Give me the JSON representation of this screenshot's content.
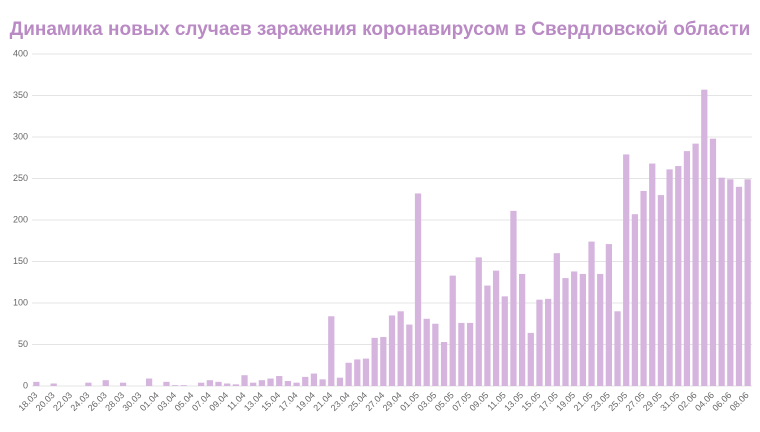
{
  "chart_data": {
    "type": "bar",
    "title": "Динамика новых случаев заражения коронавирусом в Свердловской области",
    "categories": [
      "18.03",
      null,
      "20.03",
      null,
      "22.03",
      null,
      "24.03",
      null,
      "26.03",
      null,
      "28.03",
      null,
      "30.03",
      null,
      "01.04",
      null,
      "03.04",
      null,
      "05.04",
      null,
      "07.04",
      null,
      "09.04",
      null,
      "11.04",
      null,
      "13.04",
      null,
      "15.04",
      null,
      "17.04",
      null,
      "19.04",
      null,
      "21.04",
      null,
      "23.04",
      null,
      "25.04",
      null,
      "27.04",
      null,
      "29.04",
      null,
      "01.05",
      null,
      "03.05",
      null,
      "05.05",
      null,
      "07.05",
      null,
      "09.05",
      null,
      "11.05",
      null,
      "13.05",
      null,
      "15.05",
      null,
      "17.05",
      null,
      "19.05",
      null,
      "21.05",
      null,
      "23.05",
      null,
      "25.05",
      null,
      "27.05",
      null,
      "29.05",
      null,
      "31.05",
      null,
      "02.06",
      null,
      "04.06",
      null,
      "06.06",
      null,
      "08.06"
    ],
    "values": [
      5,
      0,
      3,
      0,
      0,
      0,
      4,
      0,
      7,
      0,
      4,
      0,
      0,
      9,
      0,
      5,
      1,
      1,
      0,
      4,
      7,
      5,
      3,
      2,
      13,
      4,
      7,
      9,
      12,
      6,
      4,
      11,
      15,
      8,
      84,
      10,
      28,
      32,
      33,
      58,
      59,
      85,
      90,
      74,
      232,
      81,
      75,
      53,
      133,
      76,
      76,
      155,
      121,
      139,
      108,
      211,
      135,
      64,
      104,
      105,
      160,
      130,
      138,
      135,
      174,
      135,
      171,
      90,
      279,
      207,
      235,
      268,
      230,
      261,
      265,
      283,
      292,
      357,
      298,
      251,
      249,
      240,
      249
    ],
    "color": "#d5b4de",
    "ylim": [
      0,
      400
    ],
    "yticks": [
      0,
      50,
      100,
      150,
      200,
      250,
      300,
      350,
      400
    ],
    "grid": true
  }
}
